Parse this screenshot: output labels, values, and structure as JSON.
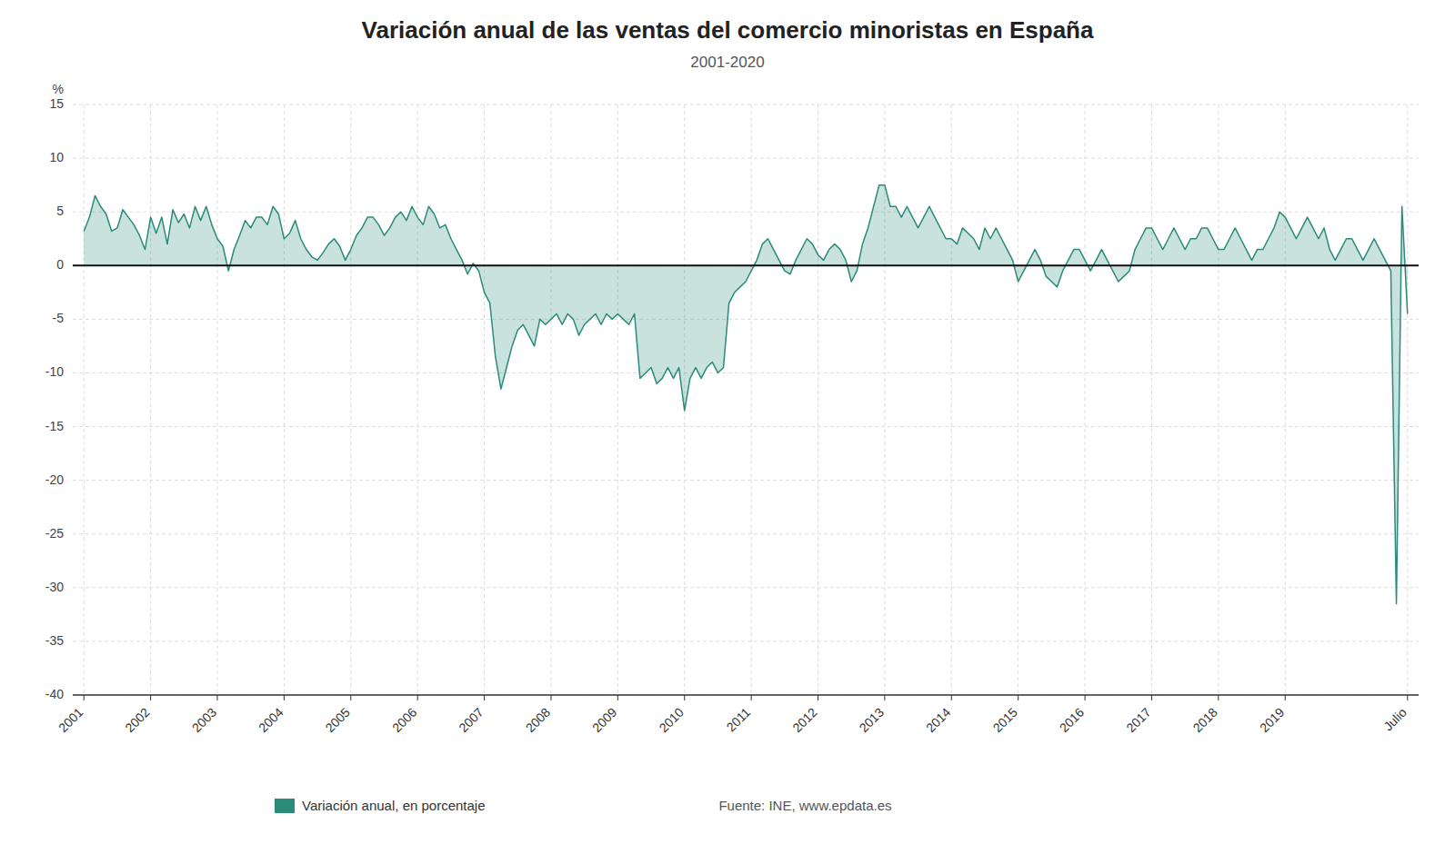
{
  "chart_data": {
    "type": "area",
    "title": "Variación anual de las ventas del comercio minoristas en España",
    "subtitle": "2001-2020",
    "y_label": "%",
    "annotations": [
      "Fuente: INE, www.epdata.es"
    ],
    "legend": "bottom",
    "grid": true,
    "ylim": [
      -40,
      15
    ],
    "yticks": [
      15,
      10,
      5,
      0,
      -5,
      -10,
      -15,
      -20,
      -25,
      -30,
      -35,
      -40
    ],
    "categories": [
      "2001",
      null,
      null,
      null,
      null,
      null,
      null,
      null,
      null,
      null,
      null,
      null,
      "2002",
      null,
      null,
      null,
      null,
      null,
      null,
      null,
      null,
      null,
      null,
      null,
      "2003",
      null,
      null,
      null,
      null,
      null,
      null,
      null,
      null,
      null,
      null,
      null,
      "2004",
      null,
      null,
      null,
      null,
      null,
      null,
      null,
      null,
      null,
      null,
      null,
      "2005",
      null,
      null,
      null,
      null,
      null,
      null,
      null,
      null,
      null,
      null,
      null,
      "2006",
      null,
      null,
      null,
      null,
      null,
      null,
      null,
      null,
      null,
      null,
      null,
      "2007",
      null,
      null,
      null,
      null,
      null,
      null,
      null,
      null,
      null,
      null,
      null,
      "2008",
      null,
      null,
      null,
      null,
      null,
      null,
      null,
      null,
      null,
      null,
      null,
      "2009",
      null,
      null,
      null,
      null,
      null,
      null,
      null,
      null,
      null,
      null,
      null,
      "2010",
      null,
      null,
      null,
      null,
      null,
      null,
      null,
      null,
      null,
      null,
      null,
      "2011",
      null,
      null,
      null,
      null,
      null,
      null,
      null,
      null,
      null,
      null,
      null,
      "2012",
      null,
      null,
      null,
      null,
      null,
      null,
      null,
      null,
      null,
      null,
      null,
      "2013",
      null,
      null,
      null,
      null,
      null,
      null,
      null,
      null,
      null,
      null,
      null,
      "2014",
      null,
      null,
      null,
      null,
      null,
      null,
      null,
      null,
      null,
      null,
      null,
      "2015",
      null,
      null,
      null,
      null,
      null,
      null,
      null,
      null,
      null,
      null,
      null,
      "2016",
      null,
      null,
      null,
      null,
      null,
      null,
      null,
      null,
      null,
      null,
      null,
      "2017",
      null,
      null,
      null,
      null,
      null,
      null,
      null,
      null,
      null,
      null,
      null,
      "2018",
      null,
      null,
      null,
      null,
      null,
      null,
      null,
      null,
      null,
      null,
      null,
      "2019",
      null,
      null,
      null,
      null,
      null,
      null,
      null,
      null,
      null,
      null,
      null,
      null,
      null,
      null,
      null,
      null,
      null,
      null,
      null,
      null,
      null,
      "Julio"
    ],
    "series": [
      {
        "name": "Variación anual, en porcentaje",
        "color": "#2a8b78",
        "values": [
          3.2,
          4.5,
          6.5,
          5.5,
          4.8,
          3.2,
          3.5,
          5.2,
          4.5,
          3.8,
          2.8,
          1.5,
          4.5,
          3.0,
          4.5,
          2.0,
          5.2,
          4.0,
          4.8,
          3.5,
          5.5,
          4.2,
          5.5,
          3.8,
          2.5,
          1.8,
          -0.5,
          1.5,
          2.8,
          4.2,
          3.5,
          4.5,
          4.5,
          3.8,
          5.5,
          4.8,
          2.5,
          3.0,
          4.2,
          2.5,
          1.5,
          0.8,
          0.5,
          1.2,
          2.0,
          2.5,
          1.8,
          0.5,
          1.5,
          2.8,
          3.5,
          4.5,
          4.5,
          3.8,
          2.8,
          3.5,
          4.5,
          5.0,
          4.2,
          5.5,
          4.5,
          3.8,
          5.5,
          4.8,
          3.5,
          3.8,
          2.5,
          1.5,
          0.5,
          -0.8,
          0.2,
          -0.5,
          -2.5,
          -3.5,
          -8.5,
          -11.5,
          -9.5,
          -7.5,
          -6.0,
          -5.5,
          -6.5,
          -7.5,
          -5.0,
          -5.5,
          -5.0,
          -4.5,
          -5.5,
          -4.5,
          -5.0,
          -6.5,
          -5.5,
          -5.0,
          -4.5,
          -5.5,
          -4.5,
          -5.0,
          -4.5,
          -5.0,
          -5.5,
          -4.5,
          -10.5,
          -10.0,
          -9.5,
          -11.0,
          -10.5,
          -9.5,
          -10.5,
          -9.5,
          -13.5,
          -10.5,
          -9.5,
          -10.5,
          -9.5,
          -9.0,
          -10.0,
          -9.5,
          -3.5,
          -2.5,
          -2.0,
          -1.5,
          -0.5,
          0.5,
          2.0,
          2.5,
          1.5,
          0.5,
          -0.5,
          -0.8,
          0.5,
          1.5,
          2.5,
          2.0,
          1.0,
          0.5,
          1.5,
          2.0,
          1.5,
          0.5,
          -1.5,
          -0.5,
          2.0,
          3.5,
          5.5,
          7.5,
          7.5,
          5.5,
          5.5,
          4.5,
          5.5,
          4.5,
          3.5,
          4.5,
          5.5,
          4.5,
          3.5,
          2.5,
          2.5,
          2.0,
          3.5,
          3.0,
          2.5,
          1.5,
          3.5,
          2.5,
          3.5,
          2.5,
          1.5,
          0.5,
          -1.5,
          -0.5,
          0.5,
          1.5,
          0.5,
          -1.0,
          -1.5,
          -2.0,
          -0.5,
          0.5,
          1.5,
          1.5,
          0.5,
          -0.5,
          0.5,
          1.5,
          0.5,
          -0.5,
          -1.5,
          -1.0,
          -0.5,
          1.5,
          2.5,
          3.5,
          3.5,
          2.5,
          1.5,
          2.5,
          3.5,
          2.5,
          1.5,
          2.5,
          2.5,
          3.5,
          3.5,
          2.5,
          1.5,
          1.5,
          2.5,
          3.5,
          2.5,
          1.5,
          0.5,
          1.5,
          1.5,
          2.5,
          3.5,
          5.0,
          4.5,
          3.5,
          2.5,
          3.5,
          4.5,
          3.5,
          2.5,
          3.5,
          1.5,
          0.5,
          1.5,
          2.5,
          2.5,
          1.5,
          0.5,
          1.5,
          2.5,
          1.5,
          0.5,
          -0.5,
          -31.5,
          5.5,
          -4.5
        ]
      }
    ]
  }
}
